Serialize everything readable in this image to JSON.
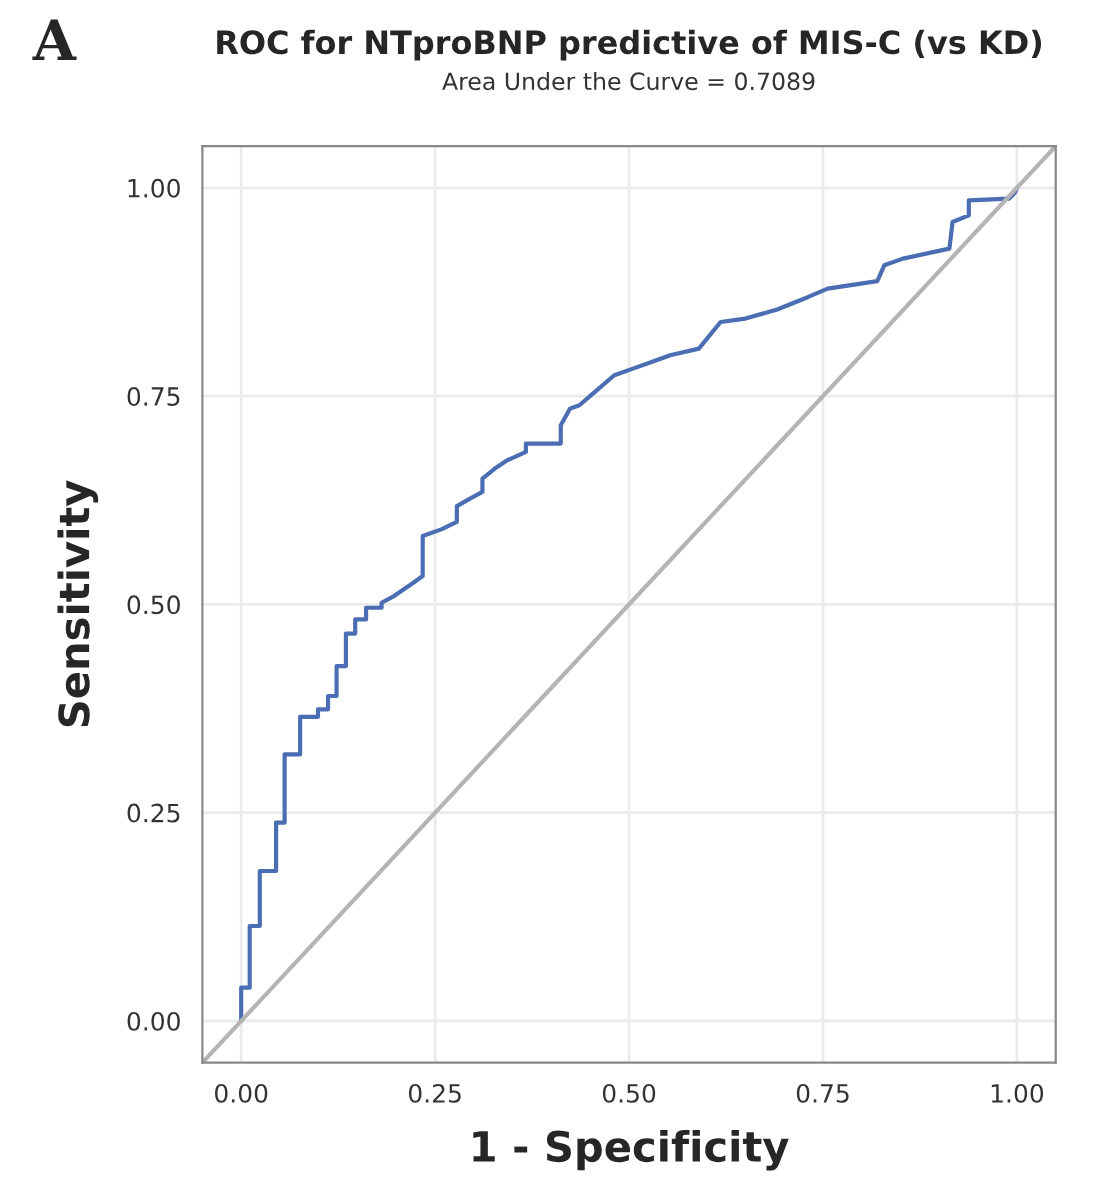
{
  "chart_data": {
    "type": "line",
    "title": "ROC for NTproBNP predictive of MIS-C (vs KD)",
    "subtitle": "Area Under the Curve = 0.7089",
    "xlabel": "1 - Specificity",
    "ylabel": "Sensitivity",
    "annotations": [
      "A"
    ],
    "series": [
      {
        "color": "#4a6db3",
        "x": [
          0,
          0,
          0.011,
          0.011,
          0.024,
          0.024,
          0.045,
          0.045,
          0.056,
          0.056,
          0.076,
          0.076,
          0.099,
          0.099,
          0.112,
          0.112,
          0.123,
          0.123,
          0.135,
          0.135,
          0.147,
          0.147,
          0.161,
          0.161,
          0.181,
          0.181,
          0.197,
          0.222,
          0.234,
          0.234,
          0.258,
          0.278,
          0.278,
          0.295,
          0.311,
          0.311,
          0.327,
          0.343,
          0.367,
          0.367,
          0.412,
          0.412,
          0.424,
          0.436,
          0.456,
          0.481,
          0.505,
          0.529,
          0.553,
          0.59,
          0.618,
          0.65,
          0.691,
          0.731,
          0.756,
          0.82,
          0.829,
          0.853,
          0.913,
          0.917,
          0.938,
          0.938,
          0.99,
          0.998,
          1.0
        ],
        "values": [
          0,
          0.04,
          0.04,
          0.114,
          0.114,
          0.18,
          0.18,
          0.238,
          0.238,
          0.32,
          0.32,
          0.365,
          0.365,
          0.374,
          0.374,
          0.39,
          0.39,
          0.426,
          0.426,
          0.465,
          0.465,
          0.482,
          0.482,
          0.496,
          0.496,
          0.502,
          0.51,
          0.526,
          0.534,
          0.582,
          0.59,
          0.599,
          0.618,
          0.627,
          0.635,
          0.651,
          0.663,
          0.673,
          0.683,
          0.693,
          0.693,
          0.715,
          0.735,
          0.739,
          0.755,
          0.775,
          0.783,
          0.791,
          0.799,
          0.807,
          0.839,
          0.843,
          0.854,
          0.869,
          0.879,
          0.888,
          0.907,
          0.915,
          0.927,
          0.959,
          0.967,
          0.985,
          0.987,
          0.995,
          1.0
        ]
      },
      {
        "color": "#b4b4b4",
        "x": [
          -0.05,
          1.05
        ],
        "values": [
          -0.05,
          1.05
        ]
      }
    ],
    "xlim": [
      -0.05,
      1.05
    ],
    "ylim": [
      -0.05,
      1.05
    ],
    "xticks": [
      {
        "value": 0,
        "label": "0.00"
      },
      {
        "value": 0.25,
        "label": "0.25"
      },
      {
        "value": 0.5,
        "label": "0.50"
      },
      {
        "value": 0.75,
        "label": "0.75"
      },
      {
        "value": 1,
        "label": "1.00"
      }
    ],
    "yticks": [
      {
        "value": 0,
        "label": "0.00"
      },
      {
        "value": 0.25,
        "label": "0.25"
      },
      {
        "value": 0.5,
        "label": "0.50"
      },
      {
        "value": 0.75,
        "label": "0.75"
      },
      {
        "value": 1,
        "label": "1.00"
      }
    ],
    "grid": true,
    "marker": "none",
    "line_style": "solid",
    "legend": false
  }
}
